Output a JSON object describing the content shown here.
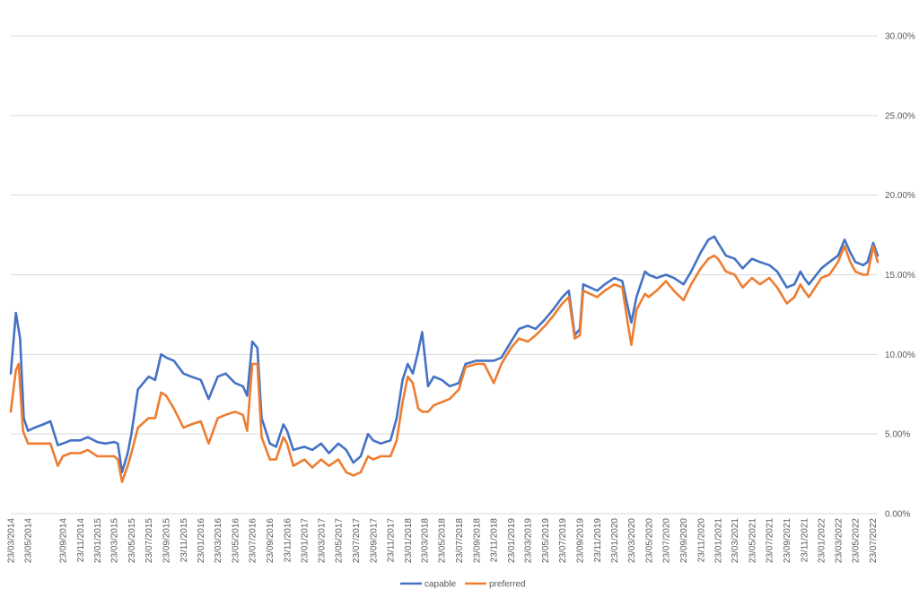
{
  "chart_data": {
    "type": "line",
    "title": "",
    "xlabel": "",
    "ylabel": "",
    "ylim": [
      0,
      30
    ],
    "y_ticks": [
      "0.00%",
      "5.00%",
      "10.00%",
      "15.00%",
      "20.00%",
      "25.00%",
      "30.00%"
    ],
    "y_axis_side": "right",
    "grid": true,
    "legend_position": "bottom-center",
    "x_ticks": [
      "23/03/2014",
      "23/05/2014",
      "23/09/2014",
      "23/11/2014",
      "23/01/2015",
      "23/03/2015",
      "23/05/2015",
      "23/07/2015",
      "23/09/2015",
      "23/11/2015",
      "23/01/2016",
      "23/03/2016",
      "23/05/2016",
      "23/07/2016",
      "23/09/2016",
      "23/11/2016",
      "23/01/2017",
      "23/03/2017",
      "23/05/2017",
      "23/07/2017",
      "23/09/2017",
      "23/11/2017",
      "23/01/2018",
      "23/03/2018",
      "23/05/2018",
      "23/07/2018",
      "23/09/2018",
      "23/11/2018",
      "23/01/2019",
      "23/03/2019",
      "23/05/2019",
      "23/07/2019",
      "23/09/2019",
      "23/11/2019",
      "23/01/2020",
      "23/03/2020",
      "23/05/2020",
      "23/07/2020",
      "23/09/2020",
      "23/11/2020",
      "23/01/2021",
      "23/03/2021",
      "23/05/2021",
      "23/07/2021",
      "23/09/2021",
      "23/11/2021",
      "23/01/2022",
      "23/03/2022",
      "23/05/2022",
      "23/07/2022"
    ],
    "series": [
      {
        "name": "capable",
        "color": "#4472C4",
        "points": [
          [
            "2014-03-23",
            8.8
          ],
          [
            "2014-04-10",
            12.6
          ],
          [
            "2014-04-25",
            11.0
          ],
          [
            "2014-05-08",
            6.0
          ],
          [
            "2014-05-23",
            5.2
          ],
          [
            "2014-06-15",
            5.4
          ],
          [
            "2014-07-15",
            5.6
          ],
          [
            "2014-08-10",
            5.8
          ],
          [
            "2014-09-05",
            4.3
          ],
          [
            "2014-09-23",
            4.4
          ],
          [
            "2014-10-20",
            4.6
          ],
          [
            "2014-11-23",
            4.6
          ],
          [
            "2014-12-20",
            4.8
          ],
          [
            "2015-01-23",
            4.5
          ],
          [
            "2015-02-20",
            4.4
          ],
          [
            "2015-03-23",
            4.5
          ],
          [
            "2015-04-05",
            4.4
          ],
          [
            "2015-04-20",
            2.6
          ],
          [
            "2015-05-10",
            3.8
          ],
          [
            "2015-05-23",
            5.0
          ],
          [
            "2015-06-15",
            7.8
          ],
          [
            "2015-07-23",
            8.6
          ],
          [
            "2015-08-15",
            8.4
          ],
          [
            "2015-09-05",
            10.0
          ],
          [
            "2015-09-23",
            9.8
          ],
          [
            "2015-10-20",
            9.6
          ],
          [
            "2015-11-23",
            8.8
          ],
          [
            "2015-12-20",
            8.6
          ],
          [
            "2016-01-23",
            8.4
          ],
          [
            "2016-02-20",
            7.2
          ],
          [
            "2016-03-23",
            8.6
          ],
          [
            "2016-04-20",
            8.8
          ],
          [
            "2016-05-23",
            8.2
          ],
          [
            "2016-06-20",
            8.0
          ],
          [
            "2016-07-05",
            7.4
          ],
          [
            "2016-07-23",
            10.8
          ],
          [
            "2016-08-10",
            10.4
          ],
          [
            "2016-08-25",
            6.0
          ],
          [
            "2016-09-23",
            4.4
          ],
          [
            "2016-10-15",
            4.2
          ],
          [
            "2016-11-10",
            5.6
          ],
          [
            "2016-11-23",
            5.2
          ],
          [
            "2016-12-15",
            4.0
          ],
          [
            "2017-01-23",
            4.2
          ],
          [
            "2017-02-20",
            4.0
          ],
          [
            "2017-03-23",
            4.4
          ],
          [
            "2017-04-20",
            3.8
          ],
          [
            "2017-05-23",
            4.4
          ],
          [
            "2017-06-20",
            4.0
          ],
          [
            "2017-07-15",
            3.2
          ],
          [
            "2017-08-10",
            3.6
          ],
          [
            "2017-09-05",
            5.0
          ],
          [
            "2017-09-23",
            4.6
          ],
          [
            "2017-10-20",
            4.4
          ],
          [
            "2017-11-23",
            4.6
          ],
          [
            "2017-12-15",
            6.0
          ],
          [
            "2018-01-05",
            8.4
          ],
          [
            "2018-01-23",
            9.4
          ],
          [
            "2018-02-10",
            8.8
          ],
          [
            "2018-03-01",
            10.2
          ],
          [
            "2018-03-15",
            11.4
          ],
          [
            "2018-04-05",
            8.0
          ],
          [
            "2018-04-25",
            8.6
          ],
          [
            "2018-05-23",
            8.4
          ],
          [
            "2018-06-20",
            8.0
          ],
          [
            "2018-07-23",
            8.2
          ],
          [
            "2018-08-15",
            9.4
          ],
          [
            "2018-09-23",
            9.6
          ],
          [
            "2018-10-20",
            9.6
          ],
          [
            "2018-11-23",
            9.6
          ],
          [
            "2018-12-20",
            9.8
          ],
          [
            "2019-01-23",
            10.8
          ],
          [
            "2019-02-20",
            11.6
          ],
          [
            "2019-03-23",
            11.8
          ],
          [
            "2019-04-20",
            11.6
          ],
          [
            "2019-05-23",
            12.2
          ],
          [
            "2019-06-20",
            12.8
          ],
          [
            "2019-07-23",
            13.6
          ],
          [
            "2019-08-15",
            14.0
          ],
          [
            "2019-09-05",
            11.2
          ],
          [
            "2019-09-23",
            11.6
          ],
          [
            "2019-10-05",
            14.4
          ],
          [
            "2019-11-23",
            14.0
          ],
          [
            "2019-12-20",
            14.4
          ],
          [
            "2020-01-23",
            14.8
          ],
          [
            "2020-02-20",
            14.6
          ],
          [
            "2020-03-10",
            13.0
          ],
          [
            "2020-03-23",
            12.0
          ],
          [
            "2020-04-10",
            13.6
          ],
          [
            "2020-05-10",
            15.2
          ],
          [
            "2020-05-23",
            15.0
          ],
          [
            "2020-06-20",
            14.8
          ],
          [
            "2020-07-23",
            15.0
          ],
          [
            "2020-08-20",
            14.8
          ],
          [
            "2020-09-23",
            14.4
          ],
          [
            "2020-10-20",
            15.2
          ],
          [
            "2020-11-23",
            16.4
          ],
          [
            "2020-12-20",
            17.2
          ],
          [
            "2021-01-10",
            17.4
          ],
          [
            "2021-01-23",
            17.0
          ],
          [
            "2021-02-20",
            16.2
          ],
          [
            "2021-03-23",
            16.0
          ],
          [
            "2021-04-20",
            15.4
          ],
          [
            "2021-05-23",
            16.0
          ],
          [
            "2021-06-20",
            15.8
          ],
          [
            "2021-07-23",
            15.6
          ],
          [
            "2021-08-20",
            15.2
          ],
          [
            "2021-09-23",
            14.2
          ],
          [
            "2021-10-20",
            14.4
          ],
          [
            "2021-11-10",
            15.2
          ],
          [
            "2021-11-23",
            14.8
          ],
          [
            "2021-12-10",
            14.4
          ],
          [
            "2022-01-23",
            15.4
          ],
          [
            "2022-02-20",
            15.8
          ],
          [
            "2022-03-23",
            16.2
          ],
          [
            "2022-04-15",
            17.2
          ],
          [
            "2022-05-05",
            16.4
          ],
          [
            "2022-05-23",
            15.8
          ],
          [
            "2022-06-20",
            15.6
          ],
          [
            "2022-07-05",
            15.8
          ],
          [
            "2022-07-25",
            17.0
          ],
          [
            "2022-08-10",
            16.2
          ]
        ]
      },
      {
        "name": "preferred",
        "color": "#ED7D31",
        "points": [
          [
            "2014-03-23",
            6.4
          ],
          [
            "2014-04-10",
            9.0
          ],
          [
            "2014-04-20",
            9.4
          ],
          [
            "2014-05-05",
            5.2
          ],
          [
            "2014-05-23",
            4.4
          ],
          [
            "2014-06-15",
            4.4
          ],
          [
            "2014-07-15",
            4.4
          ],
          [
            "2014-08-10",
            4.4
          ],
          [
            "2014-09-05",
            3.0
          ],
          [
            "2014-09-23",
            3.6
          ],
          [
            "2014-10-20",
            3.8
          ],
          [
            "2014-11-23",
            3.8
          ],
          [
            "2014-12-20",
            4.0
          ],
          [
            "2015-01-23",
            3.6
          ],
          [
            "2015-02-20",
            3.6
          ],
          [
            "2015-03-23",
            3.6
          ],
          [
            "2015-04-05",
            3.4
          ],
          [
            "2015-04-20",
            2.0
          ],
          [
            "2015-05-10",
            3.0
          ],
          [
            "2015-05-23",
            3.8
          ],
          [
            "2015-06-15",
            5.4
          ],
          [
            "2015-07-23",
            6.0
          ],
          [
            "2015-08-15",
            6.0
          ],
          [
            "2015-09-05",
            7.6
          ],
          [
            "2015-09-23",
            7.4
          ],
          [
            "2015-10-20",
            6.6
          ],
          [
            "2015-11-23",
            5.4
          ],
          [
            "2015-12-20",
            5.6
          ],
          [
            "2016-01-23",
            5.8
          ],
          [
            "2016-02-20",
            4.4
          ],
          [
            "2016-03-23",
            6.0
          ],
          [
            "2016-04-20",
            6.2
          ],
          [
            "2016-05-23",
            6.4
          ],
          [
            "2016-06-20",
            6.2
          ],
          [
            "2016-07-05",
            5.2
          ],
          [
            "2016-07-23",
            9.4
          ],
          [
            "2016-08-10",
            9.4
          ],
          [
            "2016-08-25",
            4.8
          ],
          [
            "2016-09-23",
            3.4
          ],
          [
            "2016-10-15",
            3.4
          ],
          [
            "2016-11-10",
            4.8
          ],
          [
            "2016-11-23",
            4.4
          ],
          [
            "2016-12-15",
            3.0
          ],
          [
            "2017-01-23",
            3.4
          ],
          [
            "2017-02-20",
            2.9
          ],
          [
            "2017-03-23",
            3.4
          ],
          [
            "2017-04-20",
            3.0
          ],
          [
            "2017-05-23",
            3.4
          ],
          [
            "2017-06-20",
            2.6
          ],
          [
            "2017-07-15",
            2.4
          ],
          [
            "2017-08-10",
            2.6
          ],
          [
            "2017-09-05",
            3.6
          ],
          [
            "2017-09-23",
            3.4
          ],
          [
            "2017-10-20",
            3.6
          ],
          [
            "2017-11-23",
            3.6
          ],
          [
            "2017-12-15",
            4.6
          ],
          [
            "2018-01-05",
            7.0
          ],
          [
            "2018-01-23",
            8.6
          ],
          [
            "2018-02-10",
            8.2
          ],
          [
            "2018-03-01",
            6.6
          ],
          [
            "2018-03-15",
            6.4
          ],
          [
            "2018-04-05",
            6.4
          ],
          [
            "2018-04-25",
            6.8
          ],
          [
            "2018-05-23",
            7.0
          ],
          [
            "2018-06-20",
            7.2
          ],
          [
            "2018-07-23",
            7.8
          ],
          [
            "2018-08-15",
            9.2
          ],
          [
            "2018-09-23",
            9.4
          ],
          [
            "2018-10-20",
            9.4
          ],
          [
            "2018-11-23",
            8.2
          ],
          [
            "2018-12-20",
            9.4
          ],
          [
            "2019-01-23",
            10.4
          ],
          [
            "2019-02-20",
            11.0
          ],
          [
            "2019-03-23",
            10.8
          ],
          [
            "2019-04-20",
            11.2
          ],
          [
            "2019-05-23",
            11.8
          ],
          [
            "2019-06-20",
            12.4
          ],
          [
            "2019-07-23",
            13.2
          ],
          [
            "2019-08-15",
            13.6
          ],
          [
            "2019-09-05",
            11.0
          ],
          [
            "2019-09-23",
            11.2
          ],
          [
            "2019-10-05",
            14.0
          ],
          [
            "2019-11-23",
            13.6
          ],
          [
            "2019-12-20",
            14.0
          ],
          [
            "2020-01-23",
            14.4
          ],
          [
            "2020-02-20",
            14.2
          ],
          [
            "2020-03-10",
            12.0
          ],
          [
            "2020-03-23",
            10.6
          ],
          [
            "2020-04-10",
            12.8
          ],
          [
            "2020-05-10",
            13.8
          ],
          [
            "2020-05-23",
            13.6
          ],
          [
            "2020-06-20",
            14.0
          ],
          [
            "2020-07-23",
            14.6
          ],
          [
            "2020-08-20",
            14.0
          ],
          [
            "2020-09-23",
            13.4
          ],
          [
            "2020-10-20",
            14.4
          ],
          [
            "2020-11-23",
            15.4
          ],
          [
            "2020-12-20",
            16.0
          ],
          [
            "2021-01-10",
            16.2
          ],
          [
            "2021-01-23",
            16.0
          ],
          [
            "2021-02-20",
            15.2
          ],
          [
            "2021-03-23",
            15.0
          ],
          [
            "2021-04-20",
            14.2
          ],
          [
            "2021-05-23",
            14.8
          ],
          [
            "2021-06-20",
            14.4
          ],
          [
            "2021-07-23",
            14.8
          ],
          [
            "2021-08-20",
            14.2
          ],
          [
            "2021-09-23",
            13.2
          ],
          [
            "2021-10-20",
            13.6
          ],
          [
            "2021-11-10",
            14.4
          ],
          [
            "2021-11-23",
            14.0
          ],
          [
            "2021-12-10",
            13.6
          ],
          [
            "2022-01-23",
            14.8
          ],
          [
            "2022-02-20",
            15.0
          ],
          [
            "2022-03-23",
            15.8
          ],
          [
            "2022-04-15",
            16.8
          ],
          [
            "2022-05-05",
            15.8
          ],
          [
            "2022-05-23",
            15.2
          ],
          [
            "2022-06-20",
            15.0
          ],
          [
            "2022-07-05",
            15.0
          ],
          [
            "2022-07-25",
            16.8
          ],
          [
            "2022-08-10",
            15.8
          ]
        ]
      }
    ]
  }
}
